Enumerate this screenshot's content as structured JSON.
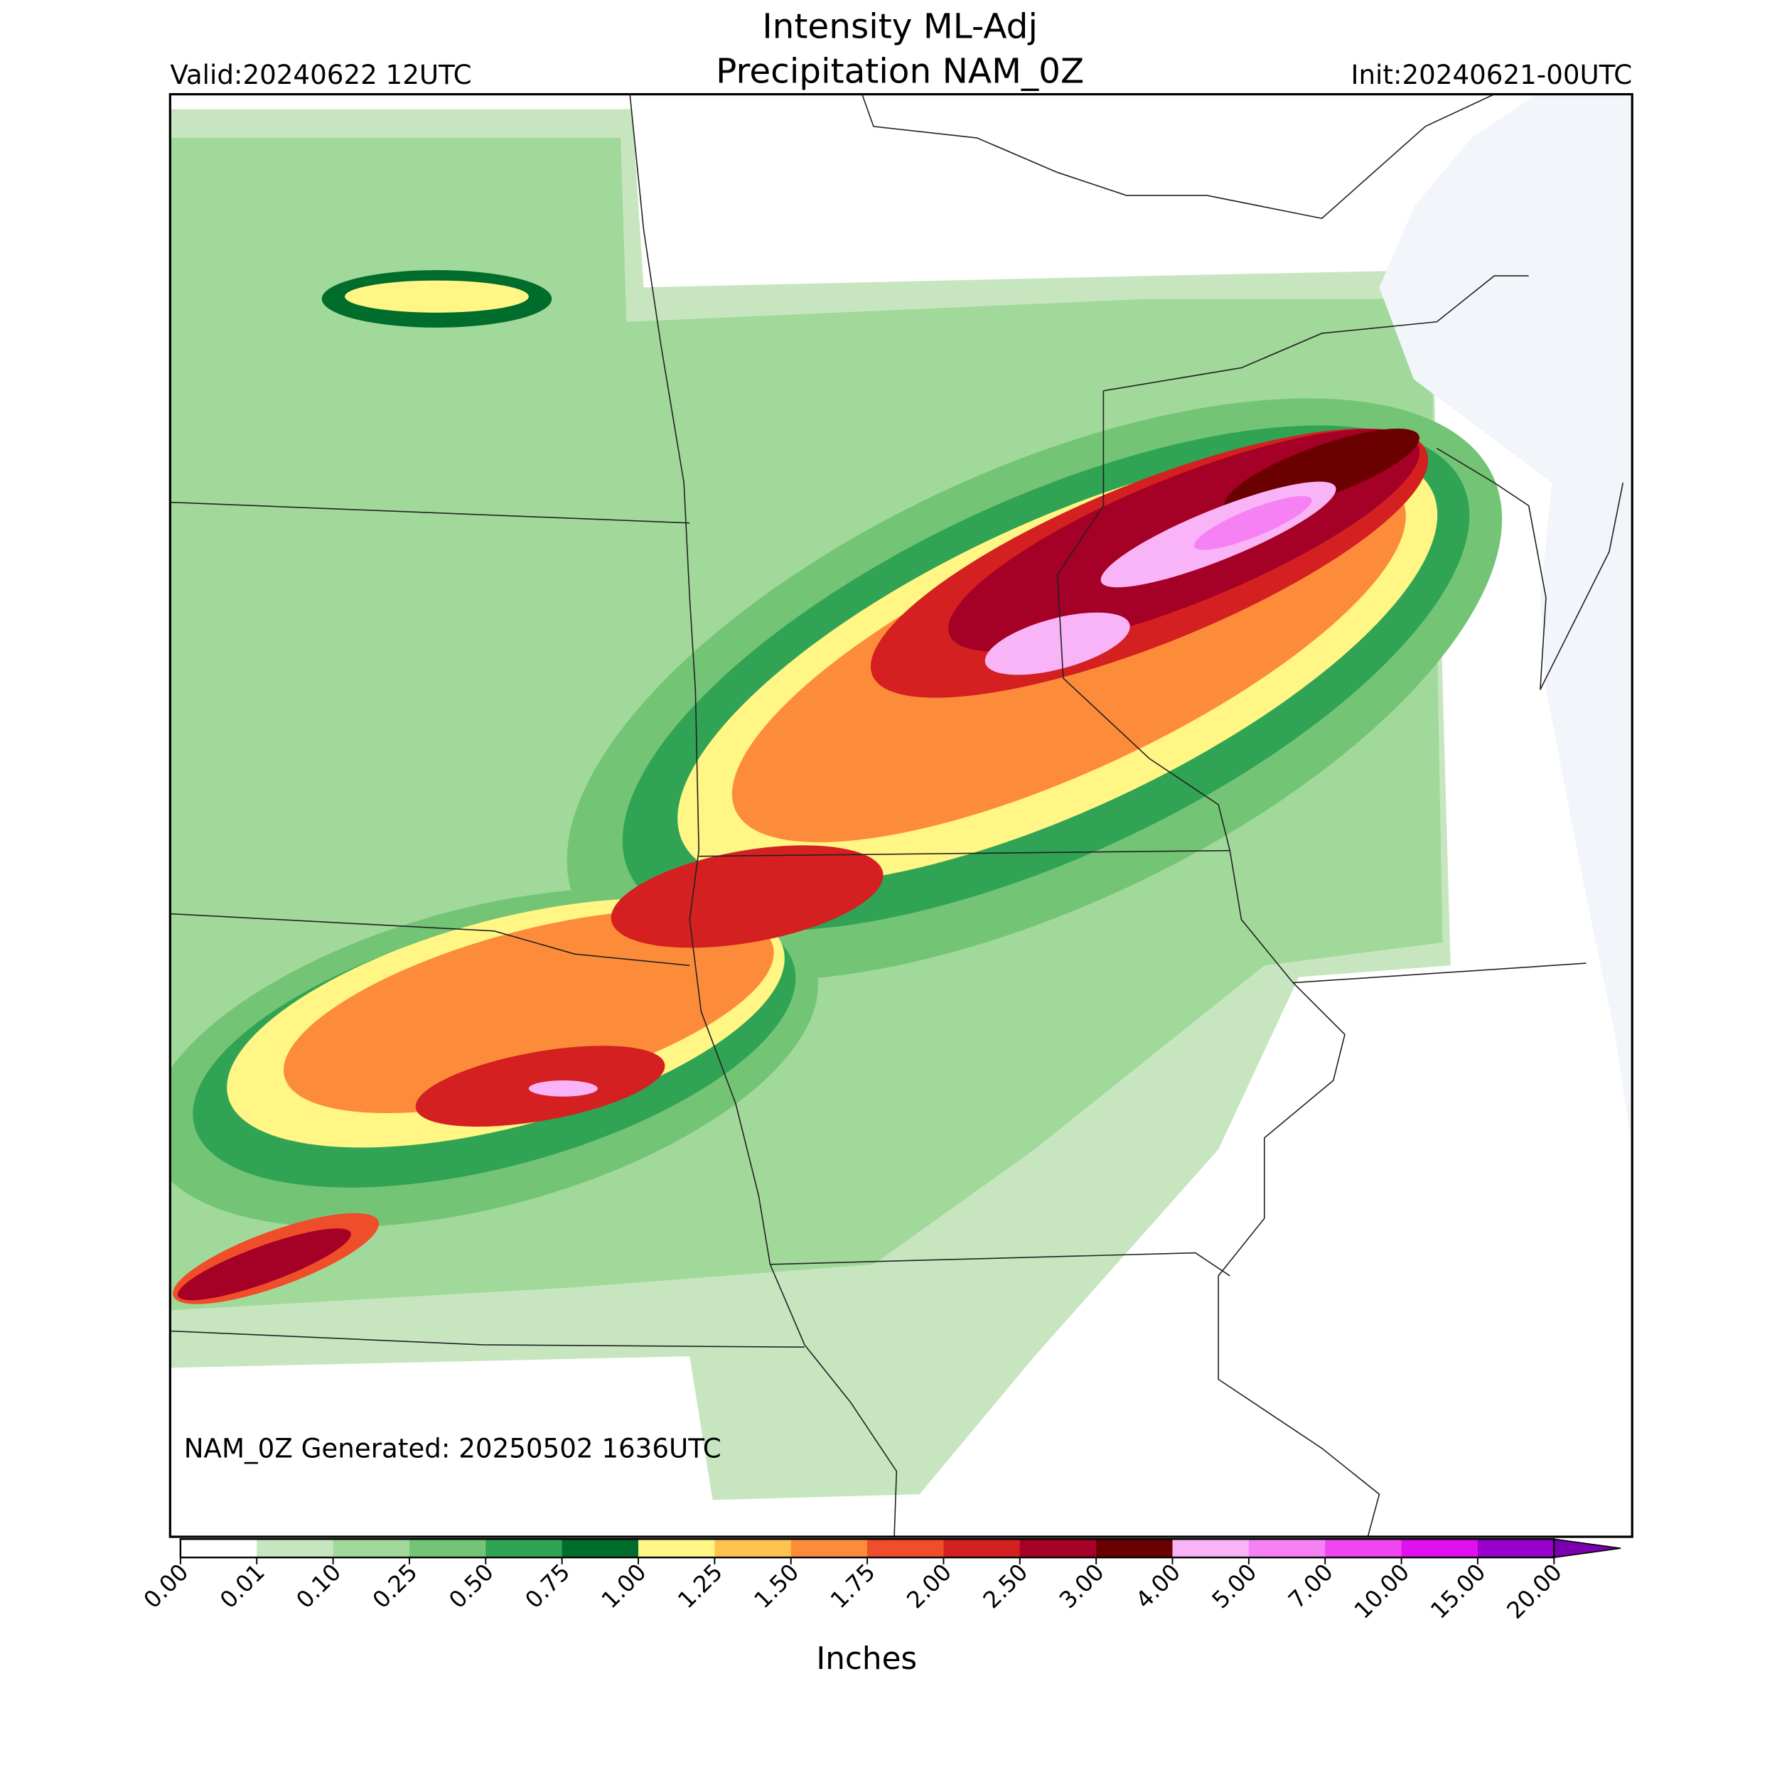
{
  "header": {
    "title_line1": "Intensity ML-Adj",
    "title_line2": "Precipitation NAM_0Z",
    "valid": "Valid:20240622 12UTC",
    "init": "Init:20240621-00UTC"
  },
  "map": {
    "note": "NAM_0Z Generated: 20250502 1636UTC"
  },
  "colorbar": {
    "label": "Inches",
    "ticks": [
      {
        "value": 0,
        "label": "0.00"
      },
      {
        "value": 0.01,
        "label": "0.01"
      },
      {
        "value": 0.1,
        "label": "0.10"
      },
      {
        "value": 0.25,
        "label": "0.25"
      },
      {
        "value": 0.5,
        "label": "0.50"
      },
      {
        "value": 0.75,
        "label": "0.75"
      },
      {
        "value": 1,
        "label": "1.00"
      },
      {
        "value": 1.25,
        "label": "1.25"
      },
      {
        "value": 1.5,
        "label": "1.50"
      },
      {
        "value": 1.75,
        "label": "1.75"
      },
      {
        "value": 2,
        "label": "2.00"
      },
      {
        "value": 2.5,
        "label": "2.50"
      },
      {
        "value": 3,
        "label": "3.00"
      },
      {
        "value": 4,
        "label": "4.00"
      },
      {
        "value": 5,
        "label": "5.00"
      },
      {
        "value": 7,
        "label": "7.00"
      },
      {
        "value": 10,
        "label": "10.00"
      },
      {
        "value": 15,
        "label": "15.00"
      },
      {
        "value": 20,
        "label": "20.00"
      }
    ],
    "colors": [
      "#ffffff",
      "#c7e6c0",
      "#a1d99b",
      "#74c476",
      "#31a354",
      "#006d2c",
      "#fff685",
      "#fdc34e",
      "#fd8c3a",
      "#f04d2a",
      "#d42020",
      "#a50026",
      "#6b0000",
      "#f9b3f7",
      "#f681f4",
      "#f046ef",
      "#e010f0",
      "#9900cc"
    ],
    "extend_color": "#7a00b0"
  }
}
